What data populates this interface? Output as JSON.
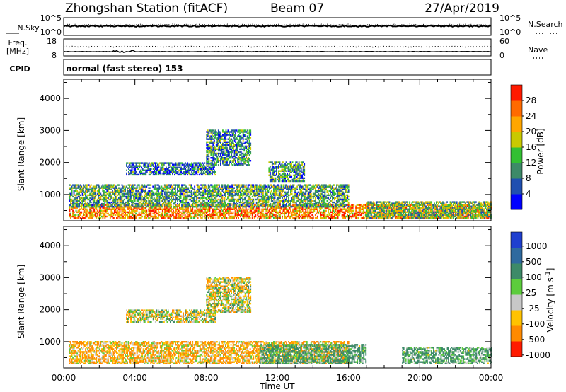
{
  "header": {
    "station": "Zhongshan Station (fitACF)",
    "beam": "Beam 07",
    "date": "27/Apr/2019"
  },
  "noise_panel": {
    "left_label": "N.Sky",
    "left_ticks": [
      "10^5",
      "10^0"
    ],
    "right_label": "N.Search",
    "right_ticks": [
      "10^5",
      "10^0"
    ]
  },
  "freq_panel": {
    "left_label_1": "Freq.",
    "left_label_2": "[MHz]",
    "left_ticks": [
      "18",
      "8"
    ],
    "right_label": "Nave",
    "right_ticks": [
      "60",
      "0"
    ]
  },
  "cpid": {
    "label": "CPID",
    "text": "normal (fast stereo) 153"
  },
  "chart_data": [
    {
      "type": "heatmap",
      "title": "",
      "quantity": "Power",
      "xlabel": "Time UT",
      "ylabel": "Slant Range [km]",
      "xlim_hours": [
        0,
        24
      ],
      "ylim": [
        180,
        4600
      ],
      "x_ticks": [
        "00:00",
        "04:00",
        "08:00",
        "12:00",
        "16:00",
        "20:00",
        "00:00"
      ],
      "y_ticks": [
        "1000",
        "2000",
        "3000",
        "4000"
      ],
      "colorbar": {
        "label": "Power [dB]",
        "range": [
          0,
          32
        ],
        "ticks": [
          "4",
          "8",
          "12",
          "16",
          "20",
          "24",
          "28"
        ],
        "colors": [
          "#0000ff",
          "#1f4fb0",
          "#3d8a68",
          "#33c033",
          "#c9c900",
          "#ffa600",
          "#ff6a00",
          "#ff1a00"
        ]
      },
      "echo_regions": [
        {
          "t_start": 0.3,
          "t_end": 24,
          "r_min": 250,
          "r_max": 700,
          "value": 24
        },
        {
          "t_start": 0.3,
          "t_end": 16,
          "r_min": 600,
          "r_max": 1300,
          "value": 12
        },
        {
          "t_start": 3.5,
          "t_end": 8.5,
          "r_min": 1600,
          "r_max": 2000,
          "value": 8
        },
        {
          "t_start": 8.0,
          "t_end": 10.5,
          "r_min": 1900,
          "r_max": 3000,
          "value": 10
        },
        {
          "t_start": 11.5,
          "t_end": 13.5,
          "r_min": 1400,
          "r_max": 2000,
          "value": 11
        },
        {
          "t_start": 17.0,
          "t_end": 24,
          "r_min": 250,
          "r_max": 750,
          "value": 14
        }
      ]
    },
    {
      "type": "heatmap",
      "title": "",
      "quantity": "Velocity",
      "xlabel": "Time UT",
      "ylabel": "Slant Range [km]",
      "xlim_hours": [
        0,
        24
      ],
      "ylim": [
        180,
        4600
      ],
      "x_ticks": [
        "00:00",
        "04:00",
        "08:00",
        "12:00",
        "16:00",
        "20:00",
        "00:00"
      ],
      "y_ticks": [
        "1000",
        "2000",
        "3000",
        "4000"
      ],
      "colorbar": {
        "label": "Velocity [m s^-1]",
        "ticks": [
          "1000",
          "500",
          "100",
          "25",
          "-25",
          "-100",
          "-500",
          "-1000"
        ],
        "colors": [
          "#1f3fcf",
          "#2f6a9f",
          "#3d8a68",
          "#5ccc3c",
          "#c8c8c8",
          "#ffc200",
          "#ff8a00",
          "#ff1a00"
        ]
      },
      "echo_regions": [
        {
          "t_start": 0.3,
          "t_end": 16,
          "r_min": 300,
          "r_max": 1000,
          "value": -100
        },
        {
          "t_start": 3.5,
          "t_end": 8.5,
          "r_min": 1600,
          "r_max": 2000,
          "value": 0
        },
        {
          "t_start": 8.0,
          "t_end": 10.5,
          "r_min": 1900,
          "r_max": 3000,
          "value": 0
        },
        {
          "t_start": 11.0,
          "t_end": 17.0,
          "r_min": 300,
          "r_max": 900,
          "value": 150
        },
        {
          "t_start": 19.0,
          "t_end": 24,
          "r_min": 300,
          "r_max": 800,
          "value": 150
        }
      ]
    }
  ]
}
